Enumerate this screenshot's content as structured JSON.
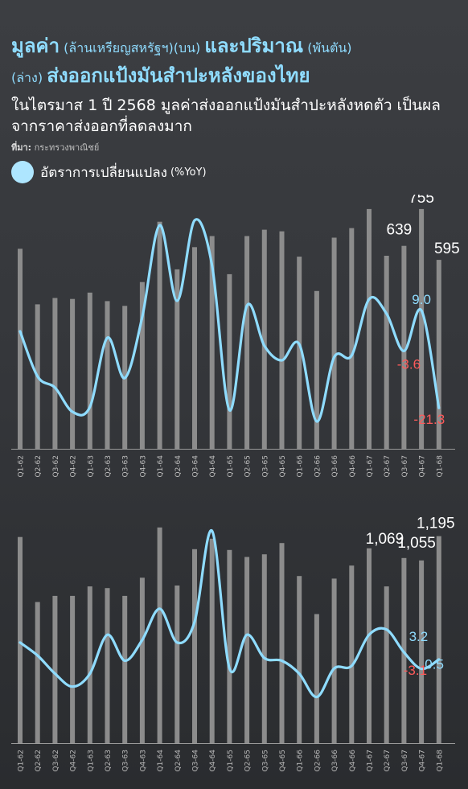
{
  "header": {
    "title_part1": "มูลค่า",
    "title_part1_unit": "(ล้านเหรียญสหรัฐฯ)(บน)",
    "title_part2": "และปริมาณ",
    "title_part2_unit": "(พันตัน)",
    "title_part3_unit": "(ล่าง)",
    "title_part3": "ส่งออกแป้งมันสำปะหลังของไทย",
    "subtitle": "ในไตรมาส 1 ปี 2568 มูลค่าส่งออกแป้งมันสำปะหลังหดตัว เป็นผลจากราคาส่งออกที่ลดลงมาก",
    "source_label": "ที่มา:",
    "source_text": "กระทรวงพาณิชย์"
  },
  "legend": {
    "label": "อัตราการเปลี่ยนแปลง",
    "unit": "(%YoY)"
  },
  "colors": {
    "bar": "#8c8c8c",
    "line": "#8fdcff",
    "negative_label": "#ff5a5a",
    "positive_label": "#8fdcff",
    "title": "#8fdcff"
  },
  "chart_data": [
    {
      "type": "bar",
      "categories": [
        "Q1-62",
        "Q2-62",
        "Q3-62",
        "Q4-62",
        "Q1-63",
        "Q2-63",
        "Q3-63",
        "Q4-63",
        "Q1-64",
        "Q2-64",
        "Q3-64",
        "Q4-64",
        "Q1-65",
        "Q2-65",
        "Q3-65",
        "Q4-65",
        "Q1-66",
        "Q2-66",
        "Q3-66",
        "Q4-66",
        "Q1-67",
        "Q2-67",
        "Q3-67",
        "Q4-67",
        "Q1-68"
      ],
      "series": [
        {
          "values": [
            630,
            455,
            475,
            472,
            492,
            465,
            450,
            525,
            715,
            565,
            635,
            670,
            550,
            670,
            690,
            685,
            605,
            497,
            665,
            695,
            755,
            608,
            639,
            755,
            595
          ]
        },
        {
          "values": [
            2.5,
            -11.5,
            -15.0,
            -22.5,
            -21.0,
            0.5,
            -12.0,
            7.0,
            35.5,
            12.0,
            37.0,
            23.0,
            -22.0,
            10.5,
            -2.0,
            -6.5,
            -1.5,
            -25.5,
            -5.5,
            -5.0,
            12.5,
            8.0,
            -3.6,
            9.0,
            -21.3
          ]
        }
      ],
      "data_labels": [
        "755",
        "639",
        "595",
        "9.0",
        "-3.6",
        "-21.3"
      ],
      "ylim_bar": [
        0,
        770
      ],
      "ylim_line": [
        -30,
        40
      ]
    },
    {
      "type": "bar",
      "categories": [
        "Q1-62",
        "Q2-62",
        "Q3-62",
        "Q4-62",
        "Q1-63",
        "Q2-63",
        "Q3-63",
        "Q4-63",
        "Q1-64",
        "Q2-64",
        "Q3-64",
        "Q4-64",
        "Q1-65",
        "Q2-65",
        "Q3-65",
        "Q4-65",
        "Q1-66",
        "Q2-66",
        "Q3-66",
        "Q4-66",
        "Q1-67",
        "Q2-67",
        "Q3-67",
        "Q4-67",
        "Q1-68"
      ],
      "series": [
        {
          "values": [
            1190,
            815,
            850,
            850,
            905,
            895,
            850,
            955,
            1245,
            910,
            1120,
            1180,
            1115,
            1075,
            1090,
            1155,
            965,
            745,
            950,
            1025,
            1125,
            905,
            1069,
            1055,
            1195
          ]
        },
        {
          "values": [
            7.0,
            2.0,
            -5.0,
            -10.0,
            -5.0,
            10.0,
            0.0,
            8.0,
            20.0,
            7.0,
            15.0,
            50.0,
            -3.0,
            10.0,
            1.0,
            0.0,
            -5.0,
            -14.0,
            -3.0,
            -2.0,
            10.0,
            12.0,
            3.2,
            -3.1,
            0.5
          ]
        }
      ],
      "data_labels": [
        "1,195",
        "1,055",
        "1,069",
        "3.2",
        "0.5",
        "-3.1"
      ],
      "ylim_bar": [
        0,
        1300
      ],
      "ylim_line": [
        -20,
        55
      ]
    }
  ]
}
